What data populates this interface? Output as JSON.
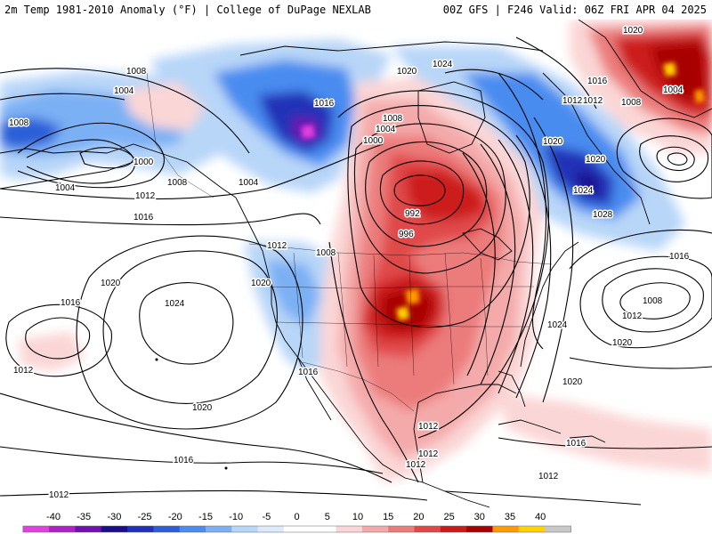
{
  "header": {
    "title_left": "2m Temp 1981-2010 Anomaly (°F) | College of DuPage NEXLAB",
    "title_right": "00Z GFS | F246 Valid: 06Z FRI APR 04 2025"
  },
  "colors": {
    "anomaly_scale": [
      "#e040e0",
      "#b020c8",
      "#7010b0",
      "#1a0e8c",
      "#2030b8",
      "#2c5ed8",
      "#4a8cf0",
      "#7bb0f4",
      "#b8d6f8",
      "#dceafc",
      "#ffffff",
      "#ffffff",
      "#fbd6d6",
      "#f4aaaa",
      "#ec7c7c",
      "#e04848",
      "#cc1a1a",
      "#a80000",
      "#ff9a00",
      "#ffd200",
      "#c8c8c8"
    ],
    "contour": "#000000",
    "coast": "#000000"
  },
  "legend": {
    "ticks": [
      "-40",
      "-35",
      "-30",
      "-25",
      "-20",
      "-15",
      "-10",
      "-5",
      "0",
      "5",
      "10",
      "15",
      "20",
      "25",
      "30",
      "35",
      "40"
    ]
  },
  "map": {
    "isobar_labels": [
      {
        "text": "1008"
      },
      {
        "text": "1004"
      },
      {
        "text": "1008"
      },
      {
        "text": "1000"
      },
      {
        "text": "1004"
      },
      {
        "text": "1008"
      },
      {
        "text": "1012"
      },
      {
        "text": "1016"
      },
      {
        "text": "1004"
      },
      {
        "text": "1016"
      },
      {
        "text": "1020"
      },
      {
        "text": "1024"
      },
      {
        "text": "1008"
      },
      {
        "text": "1004"
      },
      {
        "text": "1000"
      },
      {
        "text": "992"
      },
      {
        "text": "996"
      },
      {
        "text": "1012"
      },
      {
        "text": "1008"
      },
      {
        "text": "1020"
      },
      {
        "text": "1020"
      },
      {
        "text": "1024"
      },
      {
        "text": "1016"
      },
      {
        "text": "1016"
      },
      {
        "text": "1012"
      },
      {
        "text": "1020"
      },
      {
        "text": "1016"
      },
      {
        "text": "1012"
      },
      {
        "text": "1012"
      },
      {
        "text": "1016"
      },
      {
        "text": "1020"
      },
      {
        "text": "1024"
      },
      {
        "text": "1012"
      },
      {
        "text": "1024"
      },
      {
        "text": "1020"
      },
      {
        "text": "1016"
      },
      {
        "text": "1008"
      },
      {
        "text": "1012"
      },
      {
        "text": "1020"
      },
      {
        "text": "1012"
      },
      {
        "text": "1016"
      },
      {
        "text": "1012"
      },
      {
        "text": "1008"
      },
      {
        "text": "1004"
      },
      {
        "text": "1020"
      },
      {
        "text": "1020"
      },
      {
        "text": "1028"
      },
      {
        "text": "1012"
      },
      {
        "text": "1012"
      }
    ]
  }
}
